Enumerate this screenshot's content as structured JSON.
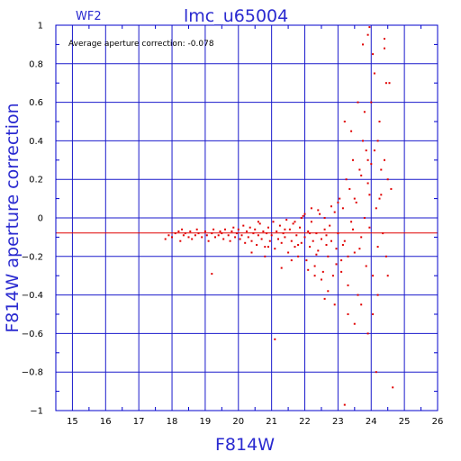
{
  "colors": {
    "axis": "#0000cc",
    "grid": "#1a1acc",
    "points": "#e00000",
    "mean_line": "#e00000",
    "label_text": "#2a2ad0"
  },
  "header": {
    "panel": "WF2",
    "title": "lmc_u65004"
  },
  "annotation": "Average aperture correction:  -0.078",
  "chart_data": {
    "type": "scatter",
    "title": "lmc_u65004",
    "subtitle": "WF2",
    "xlabel": "F814W",
    "ylabel": "F814W aperture correction",
    "xlim": [
      14.5,
      26
    ],
    "ylim": [
      -1,
      1
    ],
    "x_ticks": [
      15,
      16,
      17,
      18,
      19,
      20,
      21,
      22,
      23,
      24,
      25,
      26
    ],
    "y_ticks": [
      -1,
      -0.8,
      -0.6,
      -0.4,
      -0.2,
      0,
      0.2,
      0.4,
      0.6,
      0.8,
      1
    ],
    "x_tick_labels": [
      "15",
      "16",
      "17",
      "18",
      "19",
      "20",
      "21",
      "22",
      "23",
      "24",
      "25",
      "26"
    ],
    "y_tick_labels": [
      "−1",
      "−0.8",
      "−0.6",
      "−0.4",
      "−0.2",
      "0",
      "0.2",
      "0.4",
      "0.6",
      "0.8",
      "1"
    ],
    "grid": true,
    "mean_correction": -0.078,
    "points": [
      [
        17.8,
        -0.11
      ],
      [
        17.9,
        -0.09
      ],
      [
        18.0,
        -0.1
      ],
      [
        18.1,
        -0.08
      ],
      [
        18.2,
        -0.07
      ],
      [
        18.25,
        -0.12
      ],
      [
        18.3,
        -0.06
      ],
      [
        18.35,
        -0.09
      ],
      [
        18.4,
        -0.08
      ],
      [
        18.5,
        -0.1
      ],
      [
        18.55,
        -0.07
      ],
      [
        18.6,
        -0.11
      ],
      [
        18.7,
        -0.09
      ],
      [
        18.75,
        -0.06
      ],
      [
        18.8,
        -0.08
      ],
      [
        18.9,
        -0.1
      ],
      [
        19.0,
        -0.07
      ],
      [
        19.05,
        -0.09
      ],
      [
        19.1,
        -0.12
      ],
      [
        19.2,
        -0.08
      ],
      [
        19.25,
        -0.06
      ],
      [
        19.3,
        -0.1
      ],
      [
        19.4,
        -0.09
      ],
      [
        19.45,
        -0.07
      ],
      [
        19.5,
        -0.08
      ],
      [
        19.55,
        -0.11
      ],
      [
        19.6,
        -0.06
      ],
      [
        19.7,
        -0.09
      ],
      [
        19.75,
        -0.12
      ],
      [
        19.8,
        -0.07
      ],
      [
        19.85,
        -0.05
      ],
      [
        19.9,
        -0.1
      ],
      [
        19.95,
        -0.08
      ],
      [
        20.0,
        -0.06
      ],
      [
        20.05,
        -0.11
      ],
      [
        20.1,
        -0.09
      ],
      [
        20.15,
        -0.04
      ],
      [
        20.2,
        -0.13
      ],
      [
        20.25,
        -0.07
      ],
      [
        20.3,
        -0.1
      ],
      [
        20.35,
        -0.05
      ],
      [
        20.4,
        -0.12
      ],
      [
        20.45,
        -0.08
      ],
      [
        20.5,
        -0.06
      ],
      [
        20.55,
        -0.14
      ],
      [
        20.6,
        -0.09
      ],
      [
        20.65,
        -0.03
      ],
      [
        20.7,
        -0.11
      ],
      [
        20.75,
        -0.07
      ],
      [
        20.8,
        -0.15
      ],
      [
        20.85,
        -0.08
      ],
      [
        20.9,
        -0.05
      ],
      [
        20.95,
        -0.12
      ],
      [
        21.0,
        -0.09
      ],
      [
        21.05,
        -0.02
      ],
      [
        21.1,
        -0.16
      ],
      [
        21.15,
        -0.07
      ],
      [
        21.2,
        -0.11
      ],
      [
        21.25,
        -0.04
      ],
      [
        21.3,
        -0.13
      ],
      [
        21.35,
        -0.08
      ],
      [
        21.4,
        -0.1
      ],
      [
        21.45,
        -0.01
      ],
      [
        21.5,
        -0.18
      ],
      [
        21.55,
        -0.06
      ],
      [
        21.6,
        -0.12
      ],
      [
        21.65,
        -0.03
      ],
      [
        21.7,
        -0.15
      ],
      [
        21.75,
        -0.09
      ],
      [
        21.8,
        -0.2
      ],
      [
        21.85,
        -0.05
      ],
      [
        21.9,
        -0.13
      ],
      [
        21.95,
        0.01
      ],
      [
        22.0,
        -0.1
      ],
      [
        22.05,
        -0.22
      ],
      [
        22.1,
        -0.07
      ],
      [
        22.15,
        -0.15
      ],
      [
        22.2,
        -0.02
      ],
      [
        22.25,
        -0.12
      ],
      [
        22.3,
        -0.25
      ],
      [
        22.35,
        -0.08
      ],
      [
        22.4,
        -0.17
      ],
      [
        22.45,
        0.02
      ],
      [
        22.5,
        -0.11
      ],
      [
        22.55,
        -0.28
      ],
      [
        22.6,
        -0.06
      ],
      [
        22.65,
        -0.14
      ],
      [
        22.7,
        -0.2
      ],
      [
        22.75,
        -0.04
      ],
      [
        22.8,
        -0.12
      ],
      [
        22.85,
        -0.3
      ],
      [
        22.9,
        0.03
      ],
      [
        22.95,
        -0.16
      ],
      [
        23.0,
        -0.08
      ],
      [
        23.05,
        0.1
      ],
      [
        23.1,
        -0.22
      ],
      [
        23.15,
        0.05
      ],
      [
        23.2,
        -0.12
      ],
      [
        23.25,
        0.2
      ],
      [
        23.3,
        -0.35
      ],
      [
        23.35,
        0.15
      ],
      [
        23.4,
        -0.02
      ],
      [
        23.45,
        0.3
      ],
      [
        23.5,
        -0.18
      ],
      [
        23.55,
        0.08
      ],
      [
        23.6,
        -0.4
      ],
      [
        23.65,
        0.25
      ],
      [
        23.7,
        -0.1
      ],
      [
        23.75,
        0.4
      ],
      [
        23.8,
        0.0
      ],
      [
        23.85,
        -0.25
      ],
      [
        23.9,
        0.18
      ],
      [
        23.95,
        -0.05
      ],
      [
        24.0,
        0.6
      ],
      [
        24.05,
        -0.3
      ],
      [
        24.1,
        0.35
      ],
      [
        24.15,
        0.05
      ],
      [
        24.2,
        -0.15
      ],
      [
        24.25,
        0.5
      ],
      [
        24.3,
        0.12
      ],
      [
        24.35,
        -0.08
      ],
      [
        24.4,
        0.3
      ],
      [
        24.45,
        0.7
      ],
      [
        24.5,
        0.2
      ],
      [
        23.2,
        0.5
      ],
      [
        23.4,
        0.45
      ],
      [
        23.6,
        0.6
      ],
      [
        23.8,
        0.55
      ],
      [
        23.9,
        0.3
      ],
      [
        24.1,
        0.75
      ],
      [
        23.75,
        0.9
      ],
      [
        23.9,
        0.95
      ],
      [
        24.05,
        0.85
      ],
      [
        24.4,
        0.88
      ],
      [
        24.55,
        0.7
      ],
      [
        24.2,
        0.4
      ],
      [
        24.3,
        0.25
      ],
      [
        24.6,
        0.15
      ],
      [
        23.3,
        -0.5
      ],
      [
        23.5,
        -0.55
      ],
      [
        23.7,
        -0.45
      ],
      [
        23.9,
        -0.6
      ],
      [
        24.05,
        -0.5
      ],
      [
        24.2,
        -0.4
      ],
      [
        24.5,
        -0.3
      ],
      [
        22.9,
        -0.45
      ],
      [
        22.7,
        -0.38
      ],
      [
        22.5,
        -0.32
      ],
      [
        21.1,
        -0.63
      ],
      [
        19.2,
        -0.29
      ],
      [
        24.15,
        -0.8
      ],
      [
        24.65,
        -0.88
      ],
      [
        23.2,
        -0.97
      ],
      [
        23.95,
        0.99
      ],
      [
        24.4,
        0.93
      ],
      [
        22.6,
        -0.42
      ],
      [
        21.6,
        -0.22
      ],
      [
        21.3,
        -0.26
      ],
      [
        20.8,
        -0.2
      ],
      [
        22.2,
        0.05
      ],
      [
        22.0,
        0.02
      ],
      [
        22.4,
        0.04
      ],
      [
        22.6,
        0.0
      ],
      [
        22.8,
        0.06
      ],
      [
        23.0,
        0.08
      ],
      [
        21.7,
        -0.02
      ],
      [
        21.9,
        0.0
      ],
      [
        22.1,
        -0.27
      ],
      [
        22.3,
        -0.3
      ],
      [
        23.1,
        -0.28
      ],
      [
        23.3,
        -0.2
      ],
      [
        23.5,
        0.1
      ],
      [
        23.7,
        0.22
      ],
      [
        23.85,
        0.35
      ],
      [
        24.0,
        0.28
      ],
      [
        24.25,
        0.1
      ],
      [
        24.45,
        -0.2
      ],
      [
        20.4,
        -0.18
      ],
      [
        20.6,
        -0.02
      ],
      [
        20.9,
        -0.15
      ],
      [
        21.4,
        -0.06
      ],
      [
        21.8,
        -0.14
      ],
      [
        22.15,
        -0.08
      ],
      [
        22.35,
        -0.19
      ],
      [
        22.65,
        -0.09
      ],
      [
        22.95,
        -0.24
      ],
      [
        23.15,
        -0.14
      ],
      [
        23.45,
        -0.06
      ],
      [
        23.65,
        -0.16
      ],
      [
        23.95,
        0.12
      ]
    ]
  }
}
